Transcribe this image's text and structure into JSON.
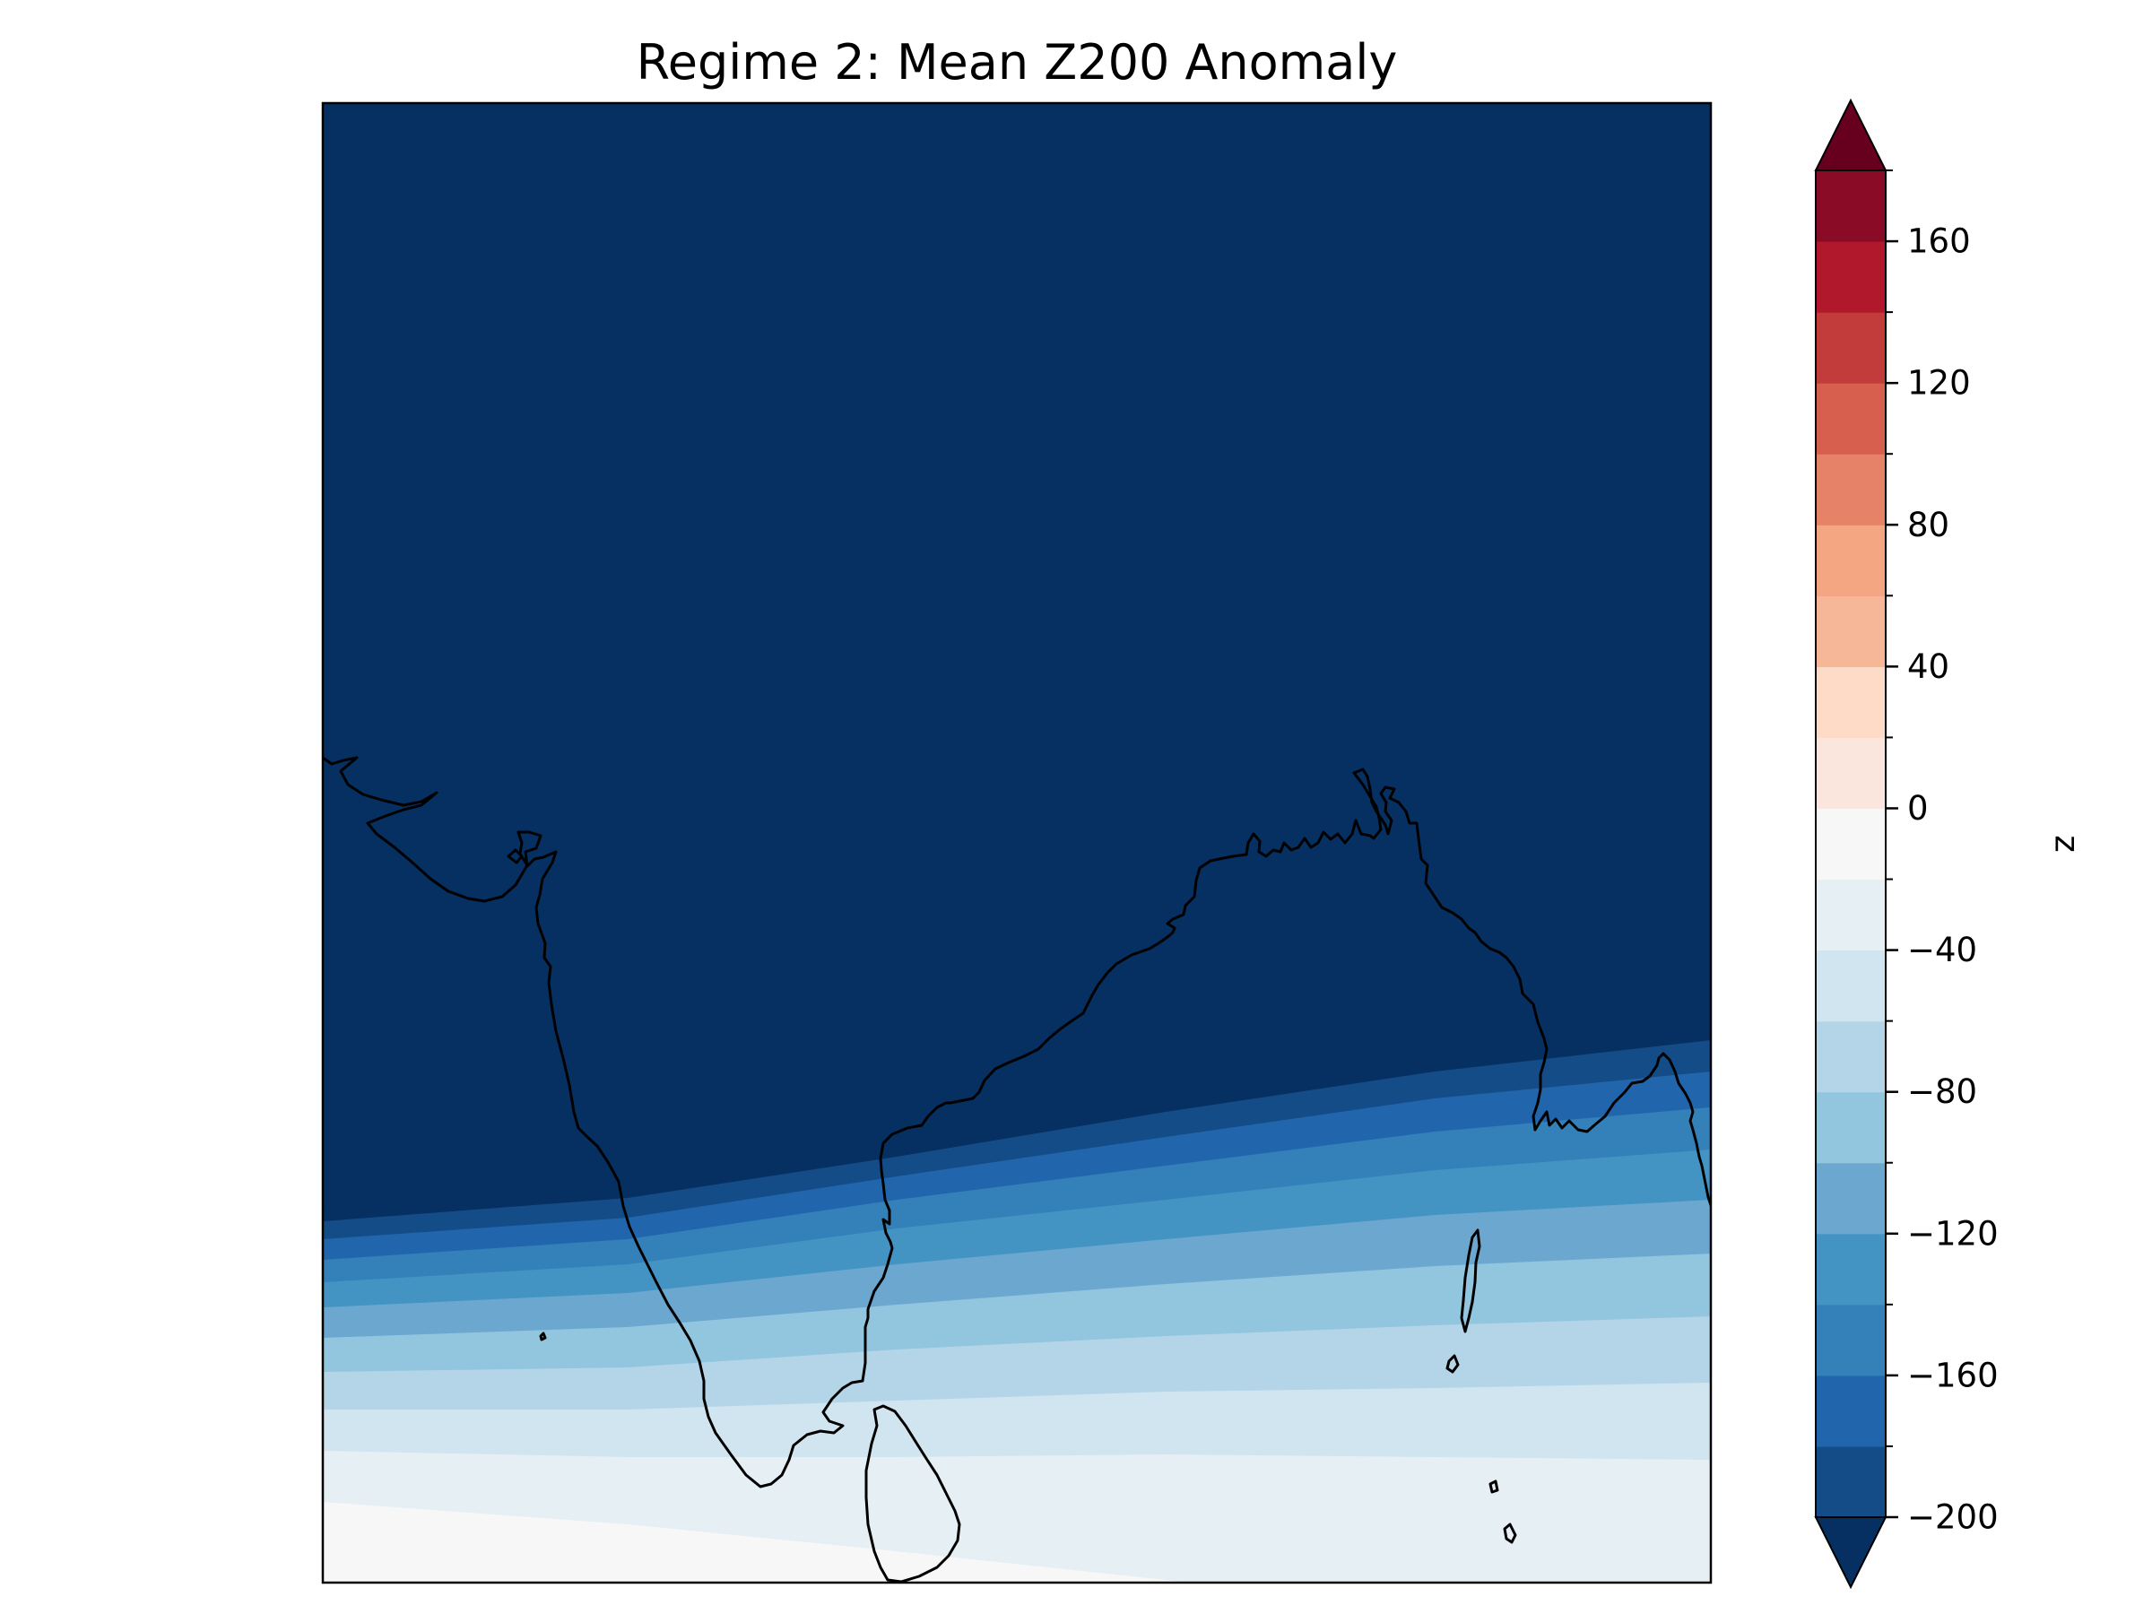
{
  "chart_data": {
    "type": "heatmap",
    "title": "Regime 2: Mean Z200 Anomaly",
    "field": "Mean Z200 Anomaly",
    "colorbar": {
      "label": "z",
      "range": [
        -200,
        180
      ],
      "step": 20,
      "extend": "both",
      "tick_values": [
        -200,
        -160,
        -120,
        -80,
        -40,
        0,
        40,
        80,
        120,
        160
      ],
      "tick_labels": [
        "−200",
        "−160",
        "−120",
        "−80",
        "−40",
        "0",
        "40",
        "80",
        "120",
        "160"
      ],
      "colors": [
        "#053061",
        "#144c87",
        "#2166ac",
        "#3480b9",
        "#4393c3",
        "#6ba7cf",
        "#92c5de",
        "#b3d5e7",
        "#d1e5f0",
        "#e6eff4",
        "#f7f7f7",
        "#fae6dd",
        "#fddbc7",
        "#f6b799",
        "#f4a582",
        "#e58268",
        "#d6604d",
        "#c33c3c",
        "#b2182b",
        "#8a0b25",
        "#67001f"
      ]
    },
    "field_bands": [
      {
        "min": -200,
        "max": -180
      },
      {
        "min": -180,
        "max": -160
      },
      {
        "min": -160,
        "max": -140
      },
      {
        "min": -140,
        "max": -120
      },
      {
        "min": -120,
        "max": -100
      },
      {
        "min": -100,
        "max": -80
      },
      {
        "min": -80,
        "max": -60
      },
      {
        "min": -60,
        "max": -40
      },
      {
        "min": -40,
        "max": -20
      },
      {
        "min": -20,
        "max": 0
      },
      {
        "min": 0,
        "max": 20
      }
    ],
    "map_features": [
      "coastline-india",
      "coastline-sri-lanka",
      "andaman-islands",
      "nicobar-islands"
    ],
    "grid": false
  }
}
